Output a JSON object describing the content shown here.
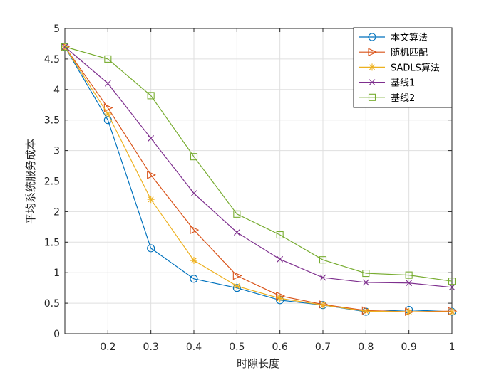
{
  "chart_data": {
    "type": "line",
    "title": "",
    "xlabel": "时隙长度",
    "ylabel": "平均系统服务成本",
    "xlim": [
      0.1,
      1.0
    ],
    "ylim": [
      0,
      5
    ],
    "x": [
      0.1,
      0.2,
      0.3,
      0.4,
      0.5,
      0.6,
      0.7,
      0.8,
      0.9,
      1.0
    ],
    "x_tick_labels": [
      "0.2",
      "0.3",
      "0.4",
      "0.5",
      "0.6",
      "0.7",
      "0.8",
      "0.9",
      "1"
    ],
    "x_tick_values": [
      0.2,
      0.3,
      0.4,
      0.5,
      0.6,
      0.7,
      0.8,
      0.9,
      1.0
    ],
    "y_tick_labels": [
      "0",
      "0.5",
      "1",
      "1.5",
      "2",
      "2.5",
      "3",
      "3.5",
      "4",
      "4.5",
      "5"
    ],
    "y_tick_values": [
      0,
      0.5,
      1,
      1.5,
      2,
      2.5,
      3,
      3.5,
      4,
      4.5,
      5
    ],
    "grid": true,
    "legend_position": "top-right",
    "series": [
      {
        "name": "本文算法",
        "color": "#0072BD",
        "marker": "circle",
        "values": [
          4.7,
          3.5,
          1.4,
          0.9,
          0.75,
          0.55,
          0.47,
          0.36,
          0.39,
          0.36
        ]
      },
      {
        "name": "随机匹配",
        "color": "#D95319",
        "marker": "triangle-right",
        "values": [
          4.7,
          3.7,
          2.6,
          1.7,
          0.95,
          0.62,
          0.48,
          0.38,
          0.36,
          0.37
        ]
      },
      {
        "name": "SADLS算法",
        "color": "#EDB120",
        "marker": "asterisk",
        "values": [
          4.7,
          3.6,
          2.2,
          1.2,
          0.78,
          0.58,
          0.47,
          0.37,
          0.36,
          0.36
        ]
      },
      {
        "name": "基线1",
        "color": "#7E2F8E",
        "marker": "x",
        "values": [
          4.7,
          4.1,
          3.2,
          2.3,
          1.66,
          1.22,
          0.92,
          0.84,
          0.83,
          0.76
        ]
      },
      {
        "name": "基线2",
        "color": "#77AC30",
        "marker": "square",
        "values": [
          4.7,
          4.5,
          3.9,
          2.9,
          1.96,
          1.62,
          1.21,
          0.99,
          0.96,
          0.86
        ]
      }
    ]
  }
}
